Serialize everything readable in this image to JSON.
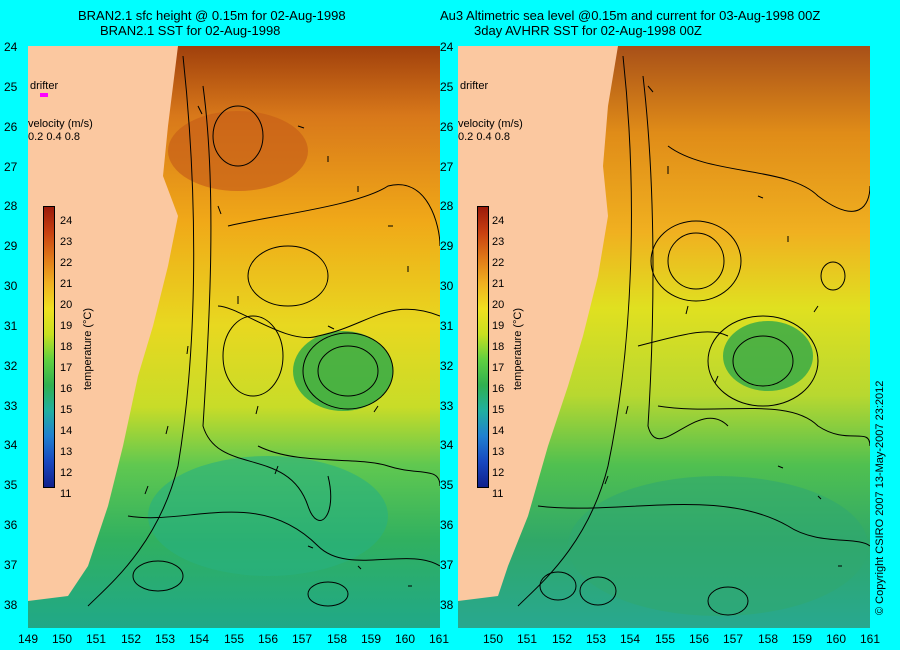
{
  "left_panel": {
    "title_line1": "BRAN2.1 sfc height @ 0.15m for 02-Aug-1998",
    "title_line2": "BRAN2.1 SST for 02-Aug-1998"
  },
  "right_panel": {
    "title_line1": "Au3 Altimetric sea level  @0.15m and current for 03-Aug-1998 00Z",
    "title_line2": "3day AVHRR SST for 02-Aug-1998 00Z"
  },
  "latitude_labels": [
    "24",
    "25",
    "26",
    "27",
    "28",
    "29",
    "30",
    "31",
    "32",
    "33",
    "34",
    "35",
    "36",
    "37",
    "38"
  ],
  "longitude_labels": [
    "149",
    "150",
    "151",
    "152",
    "153",
    "154",
    "155",
    "156",
    "157",
    "158",
    "159",
    "160",
    "161"
  ],
  "legend": {
    "drifter_label": "drifter",
    "velocity_label": "velocity (m/s)",
    "velocity_values": "0.2 0.4 0.8",
    "colorbar_title": "temperature (°C)",
    "colorbar_ticks": [
      "24",
      "23",
      "22",
      "21",
      "20",
      "19",
      "18",
      "17",
      "16",
      "15",
      "14",
      "13",
      "12",
      "11"
    ]
  },
  "copyright": "© Copyright CSIRO 2007   13-May-2007 23:2012",
  "colors": {
    "background": "#00ffff",
    "land": "#fbc8a0",
    "drifter": "#ff00ff"
  }
}
